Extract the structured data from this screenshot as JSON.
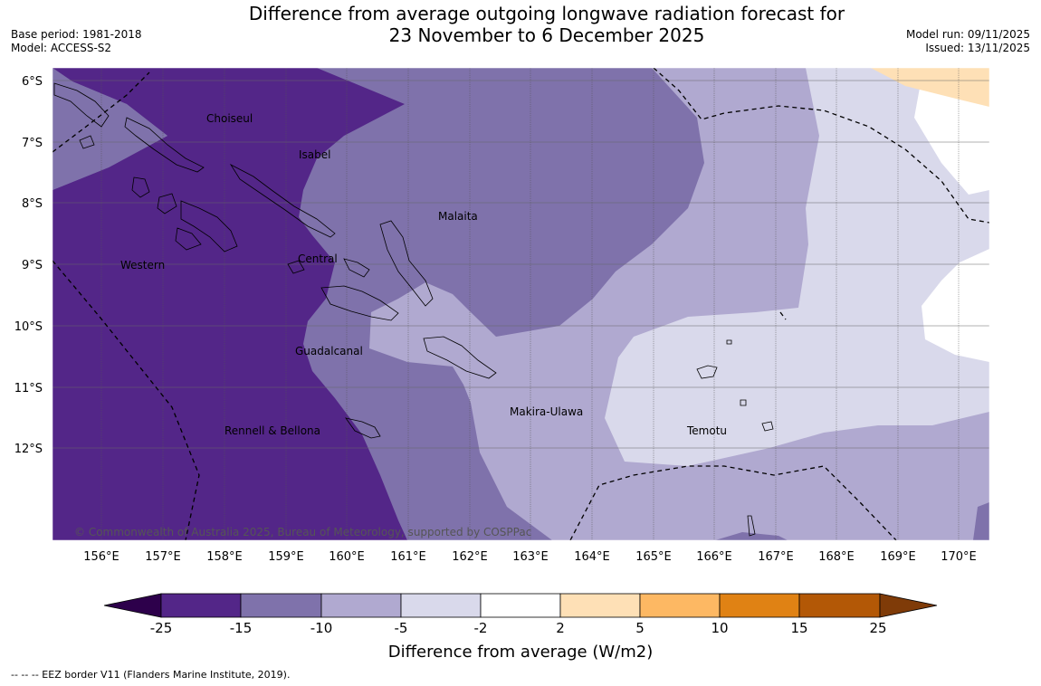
{
  "header": {
    "title_line1": "Difference from average outgoing longwave radiation forecast for",
    "title_line2": "23 November to 6 December 2025",
    "base_period": "Base period: 1981-2018",
    "model": "Model: ACCESS-S2",
    "model_run": "Model run: 09/11/2025",
    "issued": "Issued: 13/11/2025"
  },
  "map": {
    "lat_ticks": [
      "6°S",
      "7°S",
      "8°S",
      "9°S",
      "10°S",
      "11°S",
      "12°S"
    ],
    "lon_ticks": [
      "156°E",
      "157°E",
      "158°E",
      "159°E",
      "160°E",
      "161°E",
      "162°E",
      "163°E",
      "164°E",
      "165°E",
      "166°E",
      "167°E",
      "168°E",
      "169°E",
      "170°E"
    ],
    "regions": {
      "choiseul": "Choiseul",
      "isabel": "Isabel",
      "malaita": "Malaita",
      "western": "Western",
      "central": "Central",
      "guadalcanal": "Guadalcanal",
      "makira": "Makira-Ulawa",
      "rennell": "Rennell & Bellona",
      "temotu": "Temotu"
    },
    "copyright": "© Commonwealth of Australia 2025, Bureau of Meteorology, supported by COSPPac",
    "colors": {
      "lt_minus15": "#532688",
      "minus15_minus10": "#7f72ab",
      "minus10_minus5": "#b0a9d0",
      "minus5_minus2": "#d9d9eb",
      "minus2_2": "#ffffff",
      "2_5": "#fee0b6",
      "5_10": "#fdb863",
      "10_15": "#e08214",
      "15_25": "#b35806",
      "gt_25": "#7f3b08",
      "lt_minus25": "#2d004b"
    }
  },
  "colorbar": {
    "ticks": [
      "-25",
      "-15",
      "-10",
      "-5",
      "-2",
      "2",
      "5",
      "10",
      "15",
      "25"
    ],
    "label": "Difference from average (W/m2)"
  },
  "footer": {
    "eez_legend": "--  --  -- EEZ border V11 (Flanders Marine Institute, 2019)."
  }
}
